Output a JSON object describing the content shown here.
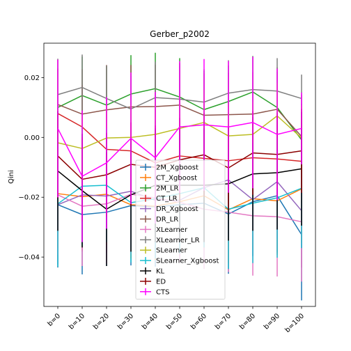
{
  "chart_data": {
    "type": "line",
    "title": "Gerber_p2002",
    "xlabel": "",
    "ylabel": "Qini",
    "categories": [
      "b=0",
      "b=10",
      "b=20",
      "b=30",
      "b=40",
      "b=50",
      "b=60",
      "b=70",
      "b=80",
      "b=90",
      "b=100"
    ],
    "ylim": [
      -0.0565,
      0.0315
    ],
    "yticks": [
      -0.04,
      -0.02,
      0.0,
      0.02
    ],
    "ytick_labels": [
      "−0.04",
      "−0.02",
      "0.00",
      "0.02"
    ],
    "grid": false,
    "legend_position": "lower-center",
    "error_bars": true,
    "series": [
      {
        "name": "2M_Xgboost",
        "color": "#1f77b4",
        "values": [
          -0.0225,
          -0.0258,
          -0.025,
          -0.0228,
          -0.0232,
          -0.0225,
          -0.022,
          -0.0256,
          -0.0215,
          -0.0195,
          -0.0325
        ],
        "err": [
          0.021,
          0.02,
          0.018,
          0.02,
          0.02,
          0.019,
          0.02,
          0.02,
          0.018,
          0.019,
          0.022
        ]
      },
      {
        "name": "CT_Xgboost",
        "color": "#ff7f0e",
        "values": [
          -0.0188,
          -0.0198,
          -0.019,
          -0.0225,
          -0.023,
          -0.0215,
          -0.0195,
          -0.0242,
          -0.0205,
          -0.0212,
          -0.0172
        ],
        "err": [
          0.018,
          0.018,
          0.017,
          0.018,
          0.018,
          0.018,
          0.018,
          0.018,
          0.017,
          0.018,
          0.018
        ]
      },
      {
        "name": "2M_LR",
        "color": "#2ca02c",
        "values": [
          0.01,
          0.014,
          0.0108,
          0.0145,
          0.0163,
          0.0135,
          0.0093,
          0.012,
          0.0152,
          0.01,
          -0.0008
        ],
        "err": [
          0.013,
          0.013,
          0.013,
          0.013,
          0.012,
          0.013,
          0.013,
          0.012,
          0.012,
          0.012,
          0.012
        ]
      },
      {
        "name": "CT_LR",
        "color": "#d62728",
        "values": [
          0.008,
          0.0035,
          -0.004,
          -0.0045,
          -0.0085,
          -0.0062,
          -0.007,
          -0.0078,
          -0.0068,
          -0.0072,
          -0.008
        ],
        "err": [
          0.015,
          0.014,
          0.014,
          0.014,
          0.014,
          0.014,
          0.014,
          0.014,
          0.014,
          0.014,
          0.014
        ]
      },
      {
        "name": "DR_Xgboost",
        "color": "#9467bd",
        "values": [
          -0.0225,
          -0.0192,
          -0.0196,
          -0.018,
          -0.021,
          -0.021,
          -0.0168,
          -0.0142,
          -0.0208,
          -0.0148,
          -0.0245
        ],
        "err": [
          0.02,
          0.019,
          0.019,
          0.019,
          0.019,
          0.019,
          0.019,
          0.019,
          0.019,
          0.019,
          0.019
        ]
      },
      {
        "name": "DR_LR",
        "color": "#8c564b",
        "values": [
          0.011,
          0.0078,
          0.0092,
          0.0102,
          0.0103,
          0.0108,
          0.0074,
          0.0076,
          0.0078,
          0.0094,
          0.0003
        ],
        "err": [
          0.015,
          0.015,
          0.015,
          0.014,
          0.014,
          0.014,
          0.014,
          0.014,
          0.014,
          0.014,
          0.014
        ]
      },
      {
        "name": "XLearner",
        "color": "#e377c2",
        "values": [
          -0.0192,
          -0.023,
          -0.0222,
          -0.019,
          -0.0202,
          -0.0217,
          -0.024,
          -0.025,
          -0.0262,
          -0.0265,
          -0.0282
        ],
        "err": [
          0.02,
          0.02,
          0.02,
          0.02,
          0.02,
          0.02,
          0.02,
          0.02,
          0.02,
          0.02,
          0.02
        ]
      },
      {
        "name": "XLearner_LR",
        "color": "#7f7f7f",
        "values": [
          0.0143,
          0.0167,
          0.013,
          0.0095,
          0.0133,
          0.0128,
          0.0118,
          0.0148,
          0.016,
          0.0155,
          0.013
        ],
        "err": [
          0.012,
          0.011,
          0.011,
          0.011,
          0.012,
          0.011,
          0.011,
          0.011,
          0.011,
          0.011,
          0.008
        ]
      },
      {
        "name": "SLearner",
        "color": "#bcbd22",
        "values": [
          -0.0018,
          -0.0037,
          -0.0002,
          0.0,
          0.001,
          0.003,
          0.005,
          0.0005,
          0.001,
          0.0072,
          -0.0002
        ],
        "err": [
          0.011,
          0.011,
          0.011,
          0.011,
          0.011,
          0.011,
          0.011,
          0.011,
          0.011,
          0.011,
          0.011
        ]
      },
      {
        "name": "SLearner_Xgboost",
        "color": "#17becf",
        "values": [
          -0.0222,
          -0.0163,
          -0.016,
          -0.0218,
          -0.0205,
          -0.0188,
          -0.0168,
          -0.024,
          -0.022,
          -0.0202,
          -0.017
        ],
        "err": [
          0.021,
          0.02,
          0.019,
          0.02,
          0.02,
          0.02,
          0.02,
          0.02,
          0.02,
          0.02,
          0.02
        ]
      },
      {
        "name": "KL",
        "color": "#000000",
        "values": [
          -0.0112,
          -0.0178,
          -0.024,
          -0.0192,
          -0.016,
          -0.016,
          -0.016,
          -0.0155,
          -0.0122,
          -0.0118,
          -0.0105
        ],
        "err": [
          0.02,
          0.019,
          0.019,
          0.019,
          0.019,
          0.019,
          0.019,
          0.019,
          0.019,
          0.019,
          0.019
        ]
      },
      {
        "name": "ED",
        "color": "#8b0000",
        "values": [
          -0.0062,
          -0.014,
          -0.0125,
          -0.009,
          -0.01,
          -0.0075,
          -0.0058,
          -0.0102,
          -0.0052,
          -0.0057,
          -0.0045
        ],
        "err": [
          0.014,
          0.014,
          0.014,
          0.014,
          0.014,
          0.014,
          0.014,
          0.014,
          0.014,
          0.014,
          0.014
        ]
      },
      {
        "name": "CTS",
        "color": "#ff00ff",
        "values": [
          0.003,
          -0.013,
          -0.0085,
          -0.0003,
          -0.0068,
          0.0035,
          0.0042,
          0.0035,
          0.005,
          0.001,
          0.003
        ],
        "err": [
          0.023,
          0.022,
          0.022,
          0.022,
          0.022,
          0.022,
          0.022,
          0.022,
          0.022,
          0.022,
          0.012
        ]
      }
    ]
  }
}
